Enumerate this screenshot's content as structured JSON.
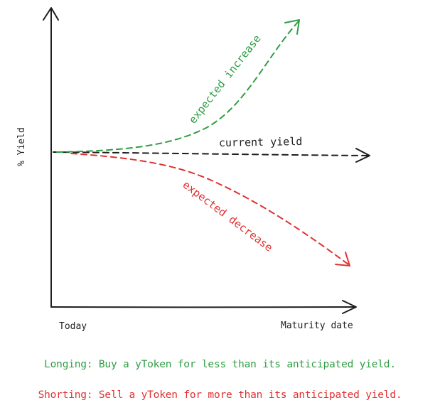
{
  "diagram": {
    "y_axis_label": "% Yield",
    "x_axis_start_label": "Today",
    "x_axis_end_label": "Maturity date",
    "curves": {
      "current": {
        "label": "current yield",
        "color": "#1e1e1e"
      },
      "increase": {
        "label": "expected increase",
        "color": "#2f9e44"
      },
      "decrease": {
        "label": "expected decrease",
        "color": "#e03131"
      }
    }
  },
  "captions": {
    "longing": "Longing: Buy a yToken for less than its anticipated yield.",
    "shorting": "Shorting: Sell a yToken for more than its anticipated yield."
  },
  "colors": {
    "axis": "#1e1e1e",
    "increase": "#2f9e44",
    "decrease": "#e03131"
  }
}
